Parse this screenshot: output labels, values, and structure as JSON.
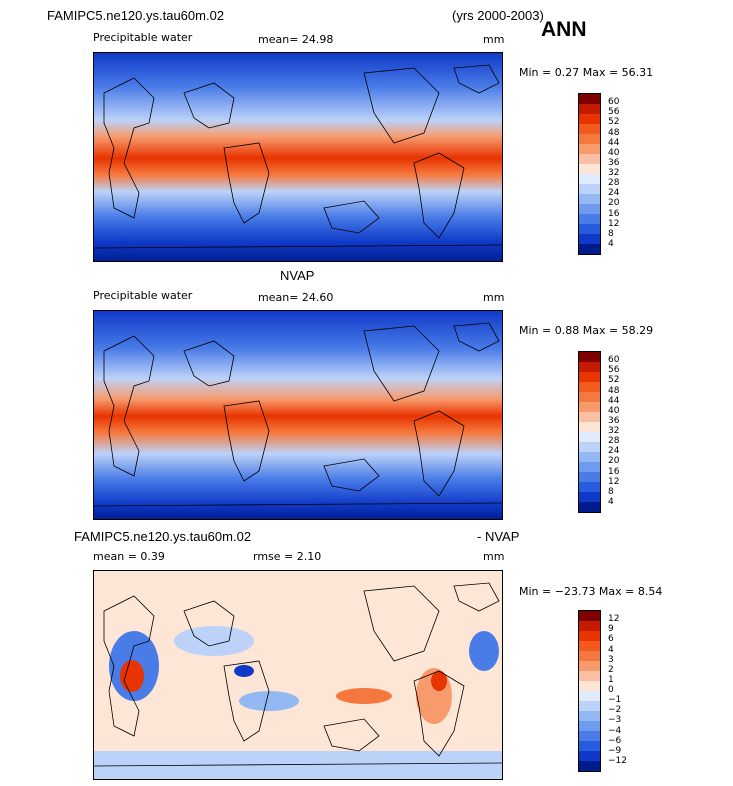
{
  "header": {
    "case_name": "FAMIPC5.ne120.ys.tau60m.02",
    "years": "(yrs 2000-2003)",
    "season": "ANN"
  },
  "panels": [
    {
      "id": "model",
      "title": "",
      "field": "Precipitable water",
      "stat1": "mean=  24.98",
      "stat2": "",
      "units": "mm",
      "minmax": "Min =   0.27 Max =  56.31",
      "colorbar": {
        "levels": [
          "60",
          "56",
          "52",
          "48",
          "44",
          "40",
          "36",
          "32",
          "28",
          "24",
          "20",
          "16",
          "12",
          "8",
          "4"
        ],
        "colors": [
          "#7f0000",
          "#c41a00",
          "#e83400",
          "#f25a1e",
          "#f5793e",
          "#f79a6c",
          "#fbbfa4",
          "#fde6d6",
          "#e0ecfc",
          "#bcd2f8",
          "#94b8f3",
          "#6e9bee",
          "#4a7ce8",
          "#285cdf",
          "#0f3ac9",
          "#001c8c"
        ]
      }
    },
    {
      "id": "obs",
      "title": "NVAP",
      "field": "Precipitable water",
      "stat1": "mean=  24.60",
      "stat2": "",
      "units": "mm",
      "minmax": "Min =   0.88 Max =  58.29",
      "colorbar": {
        "levels": [
          "60",
          "56",
          "52",
          "48",
          "44",
          "40",
          "36",
          "32",
          "28",
          "24",
          "20",
          "16",
          "12",
          "8",
          "4"
        ],
        "colors": [
          "#7f0000",
          "#c41a00",
          "#e83400",
          "#f25a1e",
          "#f5793e",
          "#f79a6c",
          "#fbbfa4",
          "#fde6d6",
          "#e0ecfc",
          "#bcd2f8",
          "#94b8f3",
          "#6e9bee",
          "#4a7ce8",
          "#285cdf",
          "#0f3ac9",
          "#001c8c"
        ]
      }
    },
    {
      "id": "diff",
      "title_left": "FAMIPC5.ne120.ys.tau60m.02",
      "title_right": "- NVAP",
      "stat1": "mean =   0.39",
      "stat2": "rmse =   2.10",
      "units": "mm",
      "minmax": "Min = −23.73 Max =   8.54",
      "colorbar": {
        "levels": [
          "12",
          "9",
          "6",
          "4",
          "3",
          "2",
          "1",
          "0",
          "−1",
          "−2",
          "−3",
          "−4",
          "−6",
          "−9",
          "−12"
        ],
        "colors": [
          "#7f0000",
          "#c41a00",
          "#e83400",
          "#f25a1e",
          "#f5793e",
          "#f79a6c",
          "#fbbfa4",
          "#fde6d6",
          "#e0ecfc",
          "#bcd2f8",
          "#94b8f3",
          "#6e9bee",
          "#4a7ce8",
          "#285cdf",
          "#0f3ac9",
          "#001c8c"
        ]
      }
    }
  ],
  "chart_data": [
    {
      "type": "heatmap",
      "title": "Precipitable water",
      "units": "mm",
      "mean": 24.98,
      "min": 0.27,
      "max": 56.31,
      "contour_levels": [
        4,
        8,
        12,
        16,
        20,
        24,
        28,
        32,
        36,
        40,
        44,
        48,
        52,
        56,
        60
      ]
    },
    {
      "type": "heatmap",
      "title": "NVAP",
      "units": "mm",
      "mean": 24.6,
      "min": 0.88,
      "max": 58.29,
      "contour_levels": [
        4,
        8,
        12,
        16,
        20,
        24,
        28,
        32,
        36,
        40,
        44,
        48,
        52,
        56,
        60
      ]
    },
    {
      "type": "heatmap",
      "title": "FAMIPC5.ne120.ys.tau60m.02 - NVAP",
      "units": "mm",
      "mean": 0.39,
      "rmse": 2.1,
      "min": -23.73,
      "max": 8.54,
      "contour_levels": [
        -12,
        -9,
        -6,
        -4,
        -3,
        -2,
        -1,
        0,
        1,
        2,
        3,
        4,
        6,
        9,
        12
      ]
    }
  ]
}
